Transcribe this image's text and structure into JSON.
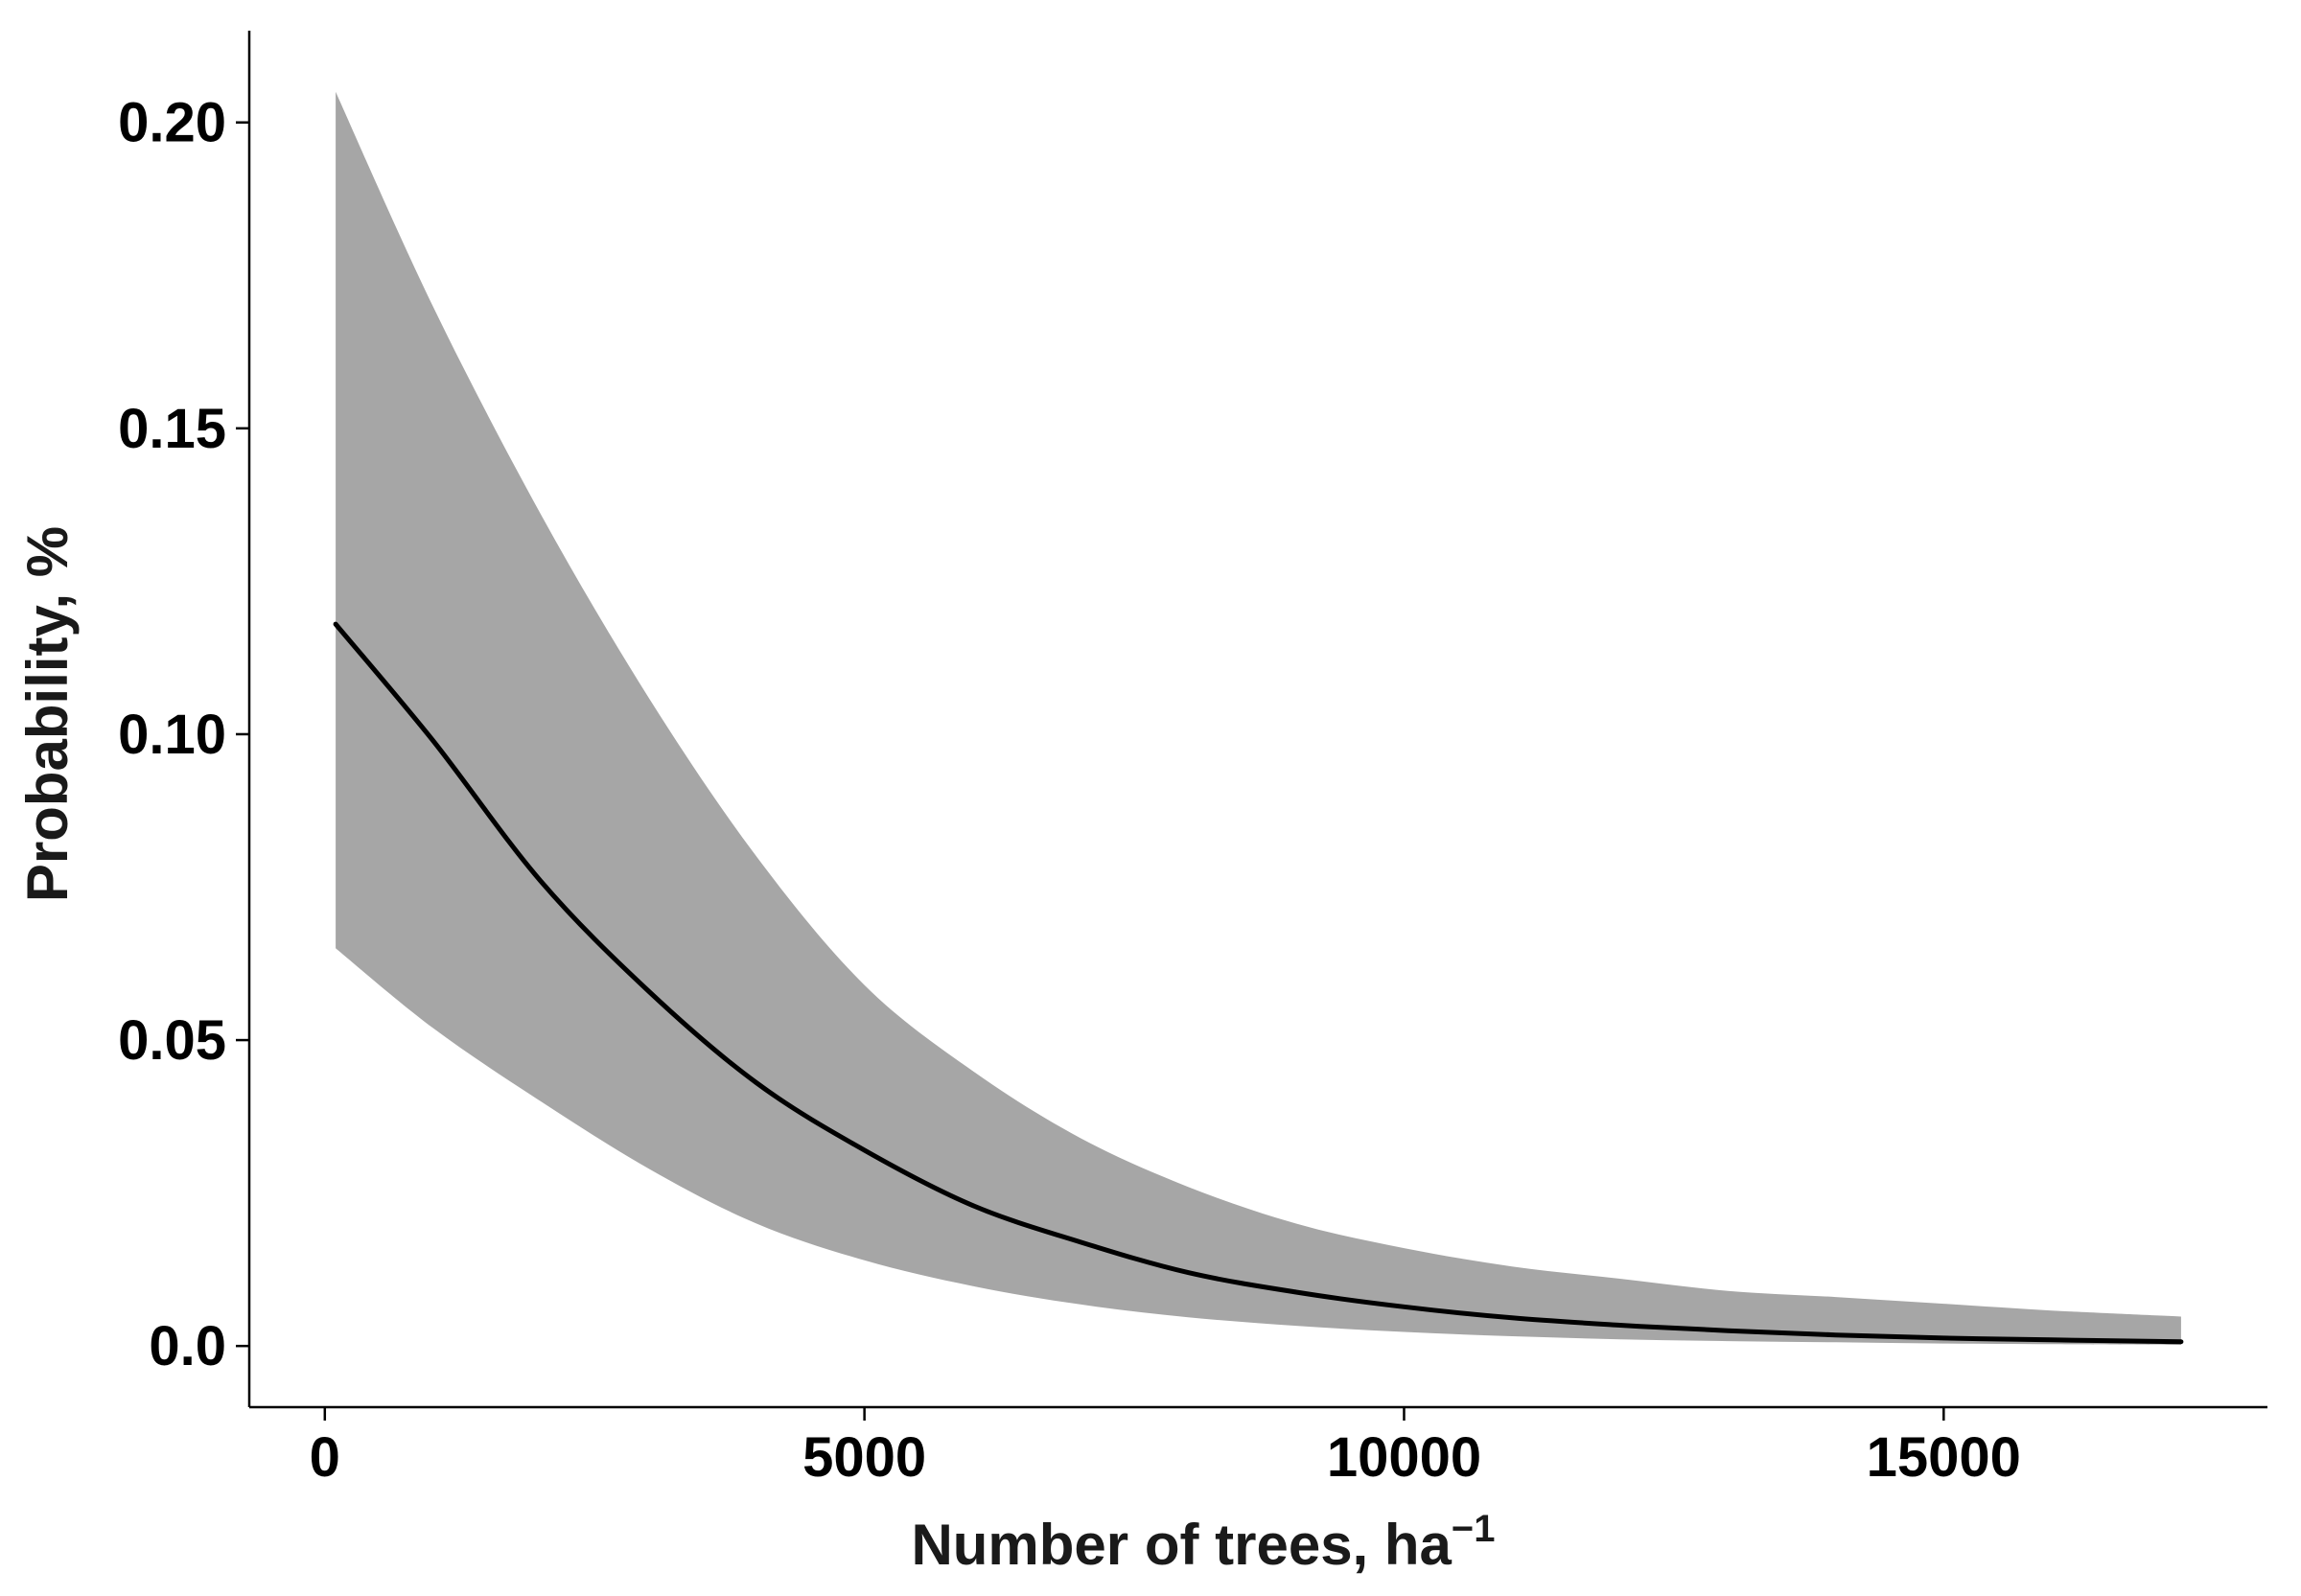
{
  "chart_data": {
    "type": "line",
    "title": "",
    "xlabel": "Number of trees, ha",
    "xlabel_superscript": "−1",
    "ylabel": "Probability, %",
    "xlim": [
      -700,
      18000
    ],
    "ylim": [
      -0.01,
      0.215
    ],
    "x_ticks": [
      0,
      5000,
      10000,
      15000
    ],
    "x_tick_labels": [
      "0",
      "5000",
      "10000",
      "15000"
    ],
    "y_ticks": [
      0.0,
      0.05,
      0.1,
      0.15,
      0.2
    ],
    "y_tick_labels": [
      "0.0",
      "0.05",
      "0.10",
      "0.15",
      "0.20"
    ],
    "grid": false,
    "legend": "none",
    "x": [
      100,
      1000,
      2000,
      3000,
      4000,
      5000,
      6000,
      7000,
      8000,
      9000,
      10000,
      11000,
      12000,
      13000,
      14000,
      15000,
      16000,
      17200
    ],
    "series": [
      {
        "values": [
          0.118,
          0.099,
          0.076,
          0.058,
          0.043,
          0.032,
          0.023,
          0.017,
          0.012,
          0.0088,
          0.0064,
          0.0046,
          0.0034,
          0.0025,
          0.0018,
          0.0013,
          0.001,
          0.0007
        ],
        "color": "#000000"
      }
    ],
    "band": {
      "lower": [
        0.065,
        0.052,
        0.04,
        0.029,
        0.02,
        0.014,
        0.0098,
        0.0068,
        0.0047,
        0.0033,
        0.0023,
        0.0016,
        0.0011,
        0.0008,
        0.0006,
        0.0004,
        0.0003,
        0.0002
      ],
      "upper": [
        0.205,
        0.17,
        0.136,
        0.106,
        0.08,
        0.059,
        0.045,
        0.034,
        0.026,
        0.02,
        0.016,
        0.013,
        0.011,
        0.009,
        0.008,
        0.0069,
        0.0058,
        0.0048
      ],
      "color": "#a6a6a6"
    }
  }
}
